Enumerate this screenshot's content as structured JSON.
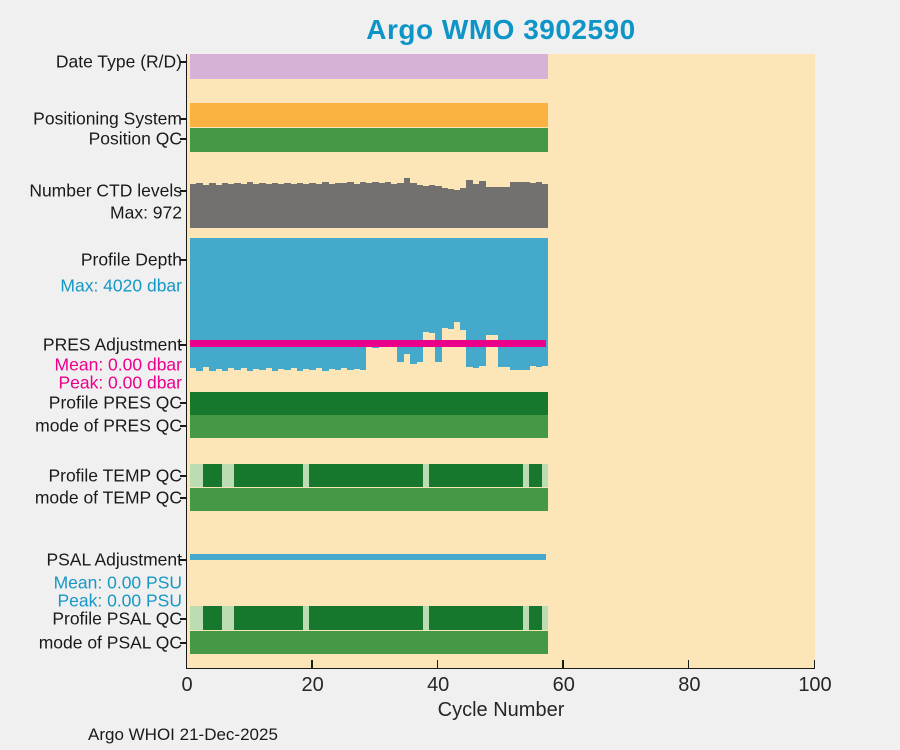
{
  "chart_data": {
    "type": "multi-band-status-timeline",
    "title": "Argo WMO 3902590",
    "xlabel": "Cycle Number",
    "footer": "Argo WHOI 21-Dec-2025",
    "xlim": [
      0,
      100
    ],
    "xticks": [
      0,
      20,
      40,
      60,
      80,
      100
    ],
    "cycles": {
      "first": 1,
      "last": 57
    },
    "colors": {
      "figure_bg": "#F0F0F0",
      "plot_bg": "#FCE5B7",
      "purple": "#D6B2D8",
      "orange": "#FBB241",
      "green_mid": "#449846",
      "green_dark": "#17782D",
      "green_light": "#BCDCB4",
      "gray": "#737070",
      "blue": "#45A9CB",
      "magenta": "#EB008C",
      "title_blue": "#0E95C8",
      "text_blue": "#1697C5",
      "axis": "#1A1A1A"
    },
    "bands": [
      {
        "id": "date_type",
        "label": "Date Type (R/D)",
        "type": "constant-band",
        "color_key": "purple"
      },
      {
        "id": "positioning_system",
        "label": "Positioning System",
        "type": "constant-band",
        "color_key": "orange"
      },
      {
        "id": "position_qc",
        "label": "Position QC",
        "type": "constant-band",
        "color_key": "green_mid"
      },
      {
        "id": "ctd_levels",
        "label": "Number CTD levels",
        "sublabel": "Max: 972",
        "type": "bars-up",
        "max": 972,
        "values": [
          855,
          880,
          840,
          875,
          845,
          875,
          855,
          880,
          850,
          895,
          860,
          880,
          855,
          870,
          850,
          880,
          860,
          875,
          850,
          870,
          865,
          885,
          860,
          880,
          870,
          885,
          865,
          890,
          870,
          885,
          875,
          890,
          865,
          880,
          972,
          870,
          845,
          825,
          835,
          820,
          780,
          760,
          745,
          770,
          940,
          850,
          920,
          800,
          790,
          805,
          795,
          890,
          885,
          895,
          880,
          890,
          860
        ]
      },
      {
        "id": "profile_depth",
        "label": "Profile Depth",
        "sublabel": "Max: 4020 dbar",
        "sublabel_color_key": "text_blue",
        "type": "bars-down",
        "max": 4020,
        "unit": "dbar",
        "values": [
          3940,
          4020,
          3900,
          4020,
          3950,
          4020,
          3930,
          4000,
          3940,
          4020,
          3950,
          4000,
          3930,
          4010,
          3960,
          3990,
          3940,
          4010,
          3950,
          4000,
          3930,
          4010,
          3950,
          3990,
          3940,
          4000,
          3950,
          3990,
          3290,
          3310,
          3280,
          3300,
          3290,
          3740,
          3500,
          3820,
          3760,
          2840,
          2860,
          3760,
          2720,
          2740,
          2540,
          2780,
          3890,
          3920,
          3880,
          2930,
          2940,
          3890,
          3900,
          3990,
          4000,
          3980,
          3870,
          3890,
          3860
        ]
      },
      {
        "id": "pres_adjustment",
        "label": "PRES Adjustment",
        "type": "line",
        "value": 0.0,
        "color_key": "magenta",
        "stats": [
          "Mean: 0.00 dbar",
          "Peak: 0.00 dbar"
        ],
        "stats_color_key": "magenta"
      },
      {
        "id": "profile_pres_qc",
        "label": "Profile PRES QC",
        "type": "qc-band",
        "base_color_key": "green_dark",
        "light_cycles": []
      },
      {
        "id": "mode_pres_qc",
        "label": "mode of PRES QC",
        "type": "constant-band",
        "color_key": "green_mid"
      },
      {
        "id": "profile_temp_qc",
        "label": "Profile TEMP QC",
        "type": "qc-band",
        "base_color_key": "green_dark",
        "light_cycles": [
          1,
          2,
          6,
          7,
          19,
          38,
          54,
          57
        ]
      },
      {
        "id": "mode_temp_qc",
        "label": "mode of TEMP QC",
        "type": "constant-band",
        "color_key": "green_mid"
      },
      {
        "id": "psal_adjustment",
        "label": "PSAL Adjustment",
        "type": "line",
        "value": 0.0,
        "color_key": "blue",
        "stats": [
          "Mean: 0.00 PSU",
          "Peak: 0.00 PSU"
        ],
        "stats_color_key": "text_blue"
      },
      {
        "id": "profile_psal_qc",
        "label": "Profile PSAL QC",
        "type": "qc-band",
        "base_color_key": "green_dark",
        "light_cycles": [
          1,
          2,
          6,
          7,
          19,
          38,
          54,
          57
        ]
      },
      {
        "id": "mode_psal_qc",
        "label": "mode of PSAL QC",
        "type": "constant-band",
        "color_key": "green_mid"
      }
    ]
  }
}
